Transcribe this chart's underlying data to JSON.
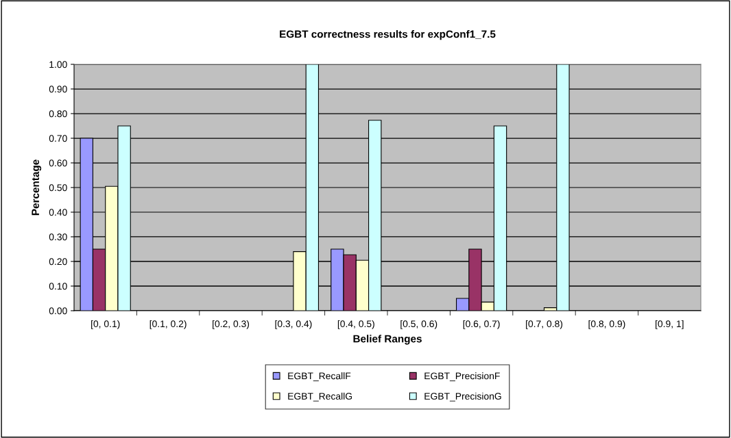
{
  "chart_data": {
    "type": "bar",
    "title": "EGBT correctness results for expConf1_7.5",
    "xlabel": "Belief Ranges",
    "ylabel": "Percentage",
    "categories": [
      "[0, 0.1)",
      "[0.1, 0.2)",
      "[0.2, 0.3)",
      "[0.3, 0.4)",
      "[0.4, 0.5)",
      "[0.5, 0.6)",
      "[0.6, 0.7)",
      "[0.7, 0.8)",
      "[0.8, 0.9)",
      "[0.9, 1]"
    ],
    "series": [
      {
        "name": "EGBT_RecallF",
        "color": "#9999ff",
        "values": [
          0.7,
          null,
          null,
          null,
          0.25,
          null,
          0.05,
          null,
          null,
          null
        ]
      },
      {
        "name": "EGBT_PrecisionF",
        "color": "#993366",
        "values": [
          0.25,
          null,
          null,
          null,
          0.227,
          null,
          0.25,
          null,
          null,
          null
        ]
      },
      {
        "name": "EGBT_RecallG",
        "color": "#ffffcc",
        "values": [
          0.505,
          null,
          null,
          0.24,
          0.205,
          null,
          0.035,
          0.012,
          null,
          null
        ]
      },
      {
        "name": "EGBT_PrecisionG",
        "color": "#ccffff",
        "values": [
          0.75,
          null,
          null,
          1.0,
          0.773,
          null,
          0.75,
          1.0,
          null,
          null
        ]
      }
    ],
    "ylim": [
      0,
      1
    ],
    "yticks": [
      {
        "value": 0,
        "label": "0.00"
      },
      {
        "value": 0.1,
        "label": "0.10"
      },
      {
        "value": 0.2,
        "label": "0.20"
      },
      {
        "value": 0.3,
        "label": "0.30"
      },
      {
        "value": 0.4,
        "label": "0.40"
      },
      {
        "value": 0.5,
        "label": "0.50"
      },
      {
        "value": 0.6,
        "label": "0.60"
      },
      {
        "value": 0.7,
        "label": "0.70"
      },
      {
        "value": 0.8,
        "label": "0.80"
      },
      {
        "value": 0.9,
        "label": "0.90"
      },
      {
        "value": 1,
        "label": "1.00"
      }
    ],
    "grid": "y",
    "legend": "bottom"
  }
}
